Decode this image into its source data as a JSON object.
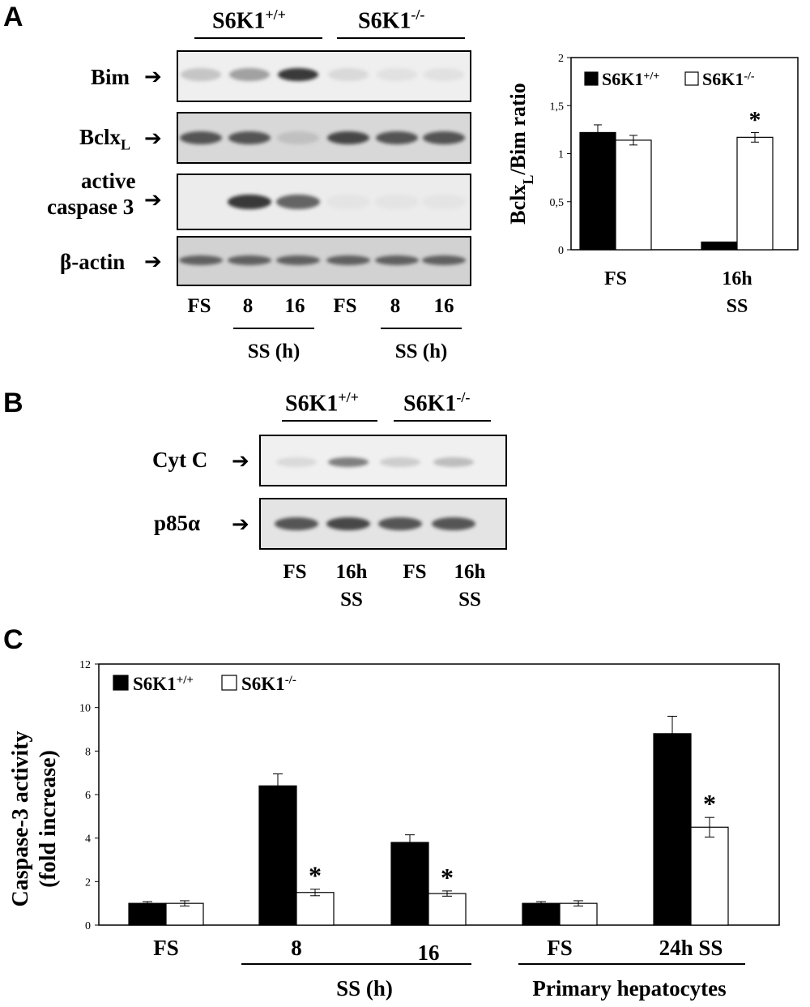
{
  "panelA": {
    "letter": "A",
    "group_wt": {
      "base": "S6K1",
      "sup": "+/+"
    },
    "group_ko": {
      "base": "S6K1",
      "sup": "-/-"
    },
    "rows": [
      {
        "label": "Bim",
        "sub": ""
      },
      {
        "label": "Bclx",
        "sub": "L"
      },
      {
        "label": "active",
        "label2": "caspase 3",
        "sub": ""
      },
      {
        "label": "β-actin",
        "sub": ""
      }
    ],
    "lanes": [
      "FS",
      "8",
      "16",
      "FS",
      "8",
      "16"
    ],
    "ss_label_wt": "SS (h)",
    "ss_label_ko": "SS (h)",
    "band_intensity": {
      "bim": [
        0.35,
        0.55,
        0.95,
        0.2,
        0.12,
        0.12
      ],
      "bclx": [
        0.85,
        0.85,
        0.3,
        0.9,
        0.85,
        0.85
      ],
      "casp3": [
        0.0,
        0.95,
        0.8,
        0.05,
        0.05,
        0.05
      ],
      "actin": [
        0.8,
        0.8,
        0.8,
        0.8,
        0.8,
        0.8
      ]
    }
  },
  "panelB": {
    "letter": "B",
    "group_wt": {
      "base": "S6K1",
      "sup": "+/+"
    },
    "group_ko": {
      "base": "S6K1",
      "sup": "-/-"
    },
    "rows": [
      {
        "label": "Cyt C"
      },
      {
        "label": "p85α"
      }
    ],
    "lanes": [
      {
        "l1": "FS",
        "l2": ""
      },
      {
        "l1": "16h",
        "l2": "SS"
      },
      {
        "l1": "FS",
        "l2": ""
      },
      {
        "l1": "16h",
        "l2": "SS"
      }
    ],
    "band_intensity": {
      "cytc": [
        0.2,
        0.7,
        0.3,
        0.4
      ],
      "p85": [
        0.85,
        0.9,
        0.85,
        0.85
      ]
    }
  },
  "panelC": {
    "letter": "C",
    "group_labels": [
      "SS (h)",
      "Primary hepatocytes"
    ]
  },
  "chart_data": [
    {
      "type": "bar",
      "panel": "A",
      "ylabel_main": "Bclx",
      "ylabel_sub": "L",
      "ylabel_rest": "/Bim ratio",
      "categories": [
        {
          "l1": "FS",
          "l2": ""
        },
        {
          "l1": "16h",
          "l2": "SS"
        }
      ],
      "ylim": [
        0,
        2
      ],
      "yticks": [
        "0",
        "0,5",
        "1",
        "1,5",
        "2"
      ],
      "legend_position": "top",
      "series": [
        {
          "name_base": "S6K1",
          "name_sup": "+/+",
          "color": "#000000",
          "values": [
            1.22,
            0.08
          ],
          "errors": [
            0.08,
            0.0
          ]
        },
        {
          "name_base": "S6K1",
          "name_sup": "-/-",
          "color": "#ffffff",
          "values": [
            1.14,
            1.17
          ],
          "errors": [
            0.05,
            0.05
          ]
        }
      ],
      "significance": [
        {
          "category": 1,
          "series": 1,
          "mark": "*"
        }
      ]
    },
    {
      "type": "bar",
      "panel": "C",
      "ylabel": "Caspase-3 activity",
      "ylabel2": "(fold increase)",
      "categories": [
        "FS",
        "8",
        "16",
        "FS",
        "24h SS"
      ],
      "ylim": [
        0,
        12
      ],
      "yticks": [
        "0",
        "2",
        "4",
        "6",
        "8",
        "10",
        "12"
      ],
      "legend_position": "top-left",
      "series": [
        {
          "name_base": "S6K1",
          "name_sup": "+/+",
          "color": "#000000",
          "values": [
            1.0,
            6.4,
            3.8,
            1.0,
            8.8
          ],
          "errors": [
            0.08,
            0.55,
            0.35,
            0.08,
            0.8
          ]
        },
        {
          "name_base": "S6K1",
          "name_sup": "-/-",
          "color": "#ffffff",
          "values": [
            1.0,
            1.5,
            1.45,
            1.0,
            4.5
          ],
          "errors": [
            0.12,
            0.15,
            0.12,
            0.12,
            0.45
          ]
        }
      ],
      "significance": [
        {
          "category": 1,
          "series": 1,
          "mark": "*"
        },
        {
          "category": 2,
          "series": 1,
          "mark": "*"
        },
        {
          "category": 4,
          "series": 1,
          "mark": "*"
        }
      ]
    }
  ]
}
